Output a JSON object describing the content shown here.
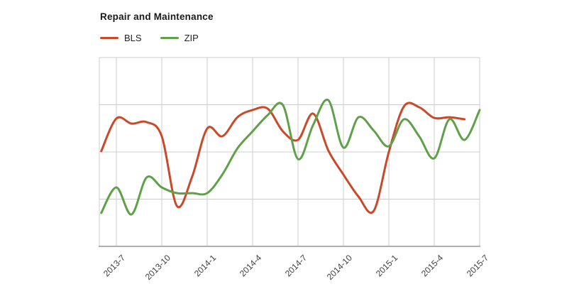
{
  "page": {
    "background": "#ffffff"
  },
  "chart_data": {
    "type": "line",
    "title": "Repair and Maintenance",
    "curve": "smooth",
    "grid": true,
    "legend_position": "top-left",
    "x_unit": "year-month",
    "x_tick_labels": [
      "2013-7",
      "2013-10",
      "2014-1",
      "2014-4",
      "2014-7",
      "2014-10",
      "2015-1",
      "2015-4",
      "2015-7"
    ],
    "y_axis_labels_visible": false,
    "ylabel": "",
    "ylim": [
      0,
      100
    ],
    "colors": {
      "grid": "#cccccc",
      "axis_line": "#b0b0b0",
      "title_text": "#1a1a1a",
      "axis_label_text": "#3d3d3d"
    },
    "series": [
      {
        "name": "BLS",
        "color": "#c9492a",
        "months": [
          "2013-06",
          "2013-07",
          "2013-08",
          "2013-09",
          "2013-10",
          "2013-11",
          "2013-12",
          "2014-01",
          "2014-02",
          "2014-03",
          "2014-04",
          "2014-05",
          "2014-06",
          "2014-07",
          "2014-08",
          "2014-09",
          "2014-10",
          "2014-11",
          "2014-12",
          "2015-01",
          "2015-02",
          "2015-03",
          "2015-04",
          "2015-05",
          "2015-06"
        ],
        "values": [
          50.4,
          67.7,
          65.0,
          65.8,
          58.3,
          21.4,
          36.8,
          62.4,
          58.3,
          68.4,
          72.2,
          72.9,
          60.9,
          56.4,
          70.3,
          50.8,
          38.0,
          26.3,
          18.8,
          50.0,
          74.1,
          73.7,
          68.0,
          68.4,
          67.3
        ]
      },
      {
        "name": "ZIP",
        "color": "#5fa049",
        "months": [
          "2013-06",
          "2013-07",
          "2013-08",
          "2013-09",
          "2013-10",
          "2013-11",
          "2013-12",
          "2014-01",
          "2014-02",
          "2014-03",
          "2014-04",
          "2014-05",
          "2014-06",
          "2014-07",
          "2014-08",
          "2014-09",
          "2014-10",
          "2014-11",
          "2014-12",
          "2015-01",
          "2015-02",
          "2015-03",
          "2015-04",
          "2015-05",
          "2015-06",
          "2015-07"
        ],
        "values": [
          17.7,
          31.2,
          16.9,
          36.5,
          31.2,
          28.2,
          28.2,
          28.2,
          38.0,
          51.9,
          60.9,
          69.5,
          74.8,
          46.2,
          64.3,
          77.4,
          52.3,
          68.4,
          61.3,
          53.0,
          67.3,
          58.3,
          46.6,
          67.3,
          56.4,
          72.2
        ]
      }
    ]
  }
}
